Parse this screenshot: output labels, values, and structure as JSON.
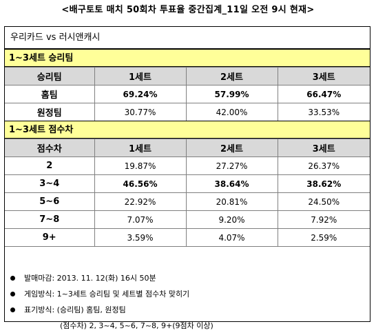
{
  "title": "<배구토토 매치 50회차 투표율 중간집계_11일 오전 9시 현재>",
  "match": "우리카드 vs 러시앤캐시",
  "winner_section": {
    "heading": "1~3세트 승리팀",
    "columns": [
      "승리팀",
      "1세트",
      "2세트",
      "3세트"
    ],
    "rows": [
      {
        "label": "홈팀",
        "values": [
          "69.24%",
          "57.99%",
          "66.47%"
        ]
      },
      {
        "label": "원정팀",
        "values": [
          "30.77%",
          "42.00%",
          "33.53%"
        ]
      }
    ]
  },
  "margin_section": {
    "heading": "1~3세트 점수차",
    "columns": [
      "점수차",
      "1세트",
      "2세트",
      "3세트"
    ],
    "rows": [
      {
        "label": "2",
        "values": [
          "19.87%",
          "27.27%",
          "26.37%"
        ]
      },
      {
        "label": "3~4",
        "values": [
          "46.56%",
          "38.64%",
          "38.62%"
        ]
      },
      {
        "label": "5~6",
        "values": [
          "22.92%",
          "20.81%",
          "24.50%"
        ]
      },
      {
        "label": "7~8",
        "values": [
          "7.07%",
          "9.20%",
          "7.92%"
        ]
      },
      {
        "label": "9+",
        "values": [
          "3.59%",
          "4.07%",
          "2.59%"
        ]
      }
    ]
  },
  "notes": [
    "발매마감: 2013. 11. 12(화) 16시 50분",
    "게임방식: 1~3세트 승리팀 및 세트별 점수차 맞히기",
    "표기방식: (승리팀) 홈팀, 원정팀"
  ],
  "note_sub": "(점수차) 2, 3~4, 5~6, 7~8, 9+(9점차 이상)"
}
